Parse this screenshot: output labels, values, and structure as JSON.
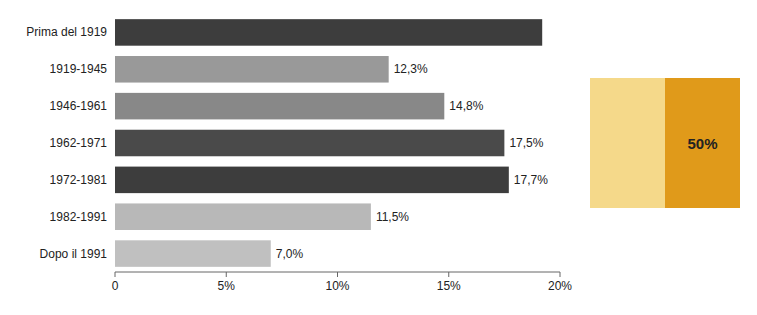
{
  "chart_data": {
    "type": "bar",
    "orientation": "horizontal",
    "categories": [
      "Prima del 1919",
      "1919-1945",
      "1946-1961",
      "1962-1971",
      "1972-1981",
      "1982-1991",
      "Dopo il 1991"
    ],
    "values": [
      19.2,
      12.3,
      14.8,
      17.5,
      17.7,
      11.5,
      7.0
    ],
    "value_labels": [
      null,
      "12,3%",
      "14,8%",
      "17,5%",
      "17,7%",
      "11,5%",
      "7,0%"
    ],
    "colors": [
      "#3d3d3d",
      "#999999",
      "#888888",
      "#4a4a4a",
      "#3d3d3d",
      "#b8b8b8",
      "#c0c0c0"
    ],
    "xlim": [
      0,
      20
    ],
    "xticks": [
      0,
      {
        "value": 5,
        "label": "5%"
      },
      {
        "value": 10,
        "label": "10%"
      },
      {
        "value": 15,
        "label": "15%"
      },
      {
        "value": 20,
        "label": "20%"
      }
    ],
    "data_labels": true,
    "grid": false,
    "annotations": [
      "50%"
    ]
  }
}
